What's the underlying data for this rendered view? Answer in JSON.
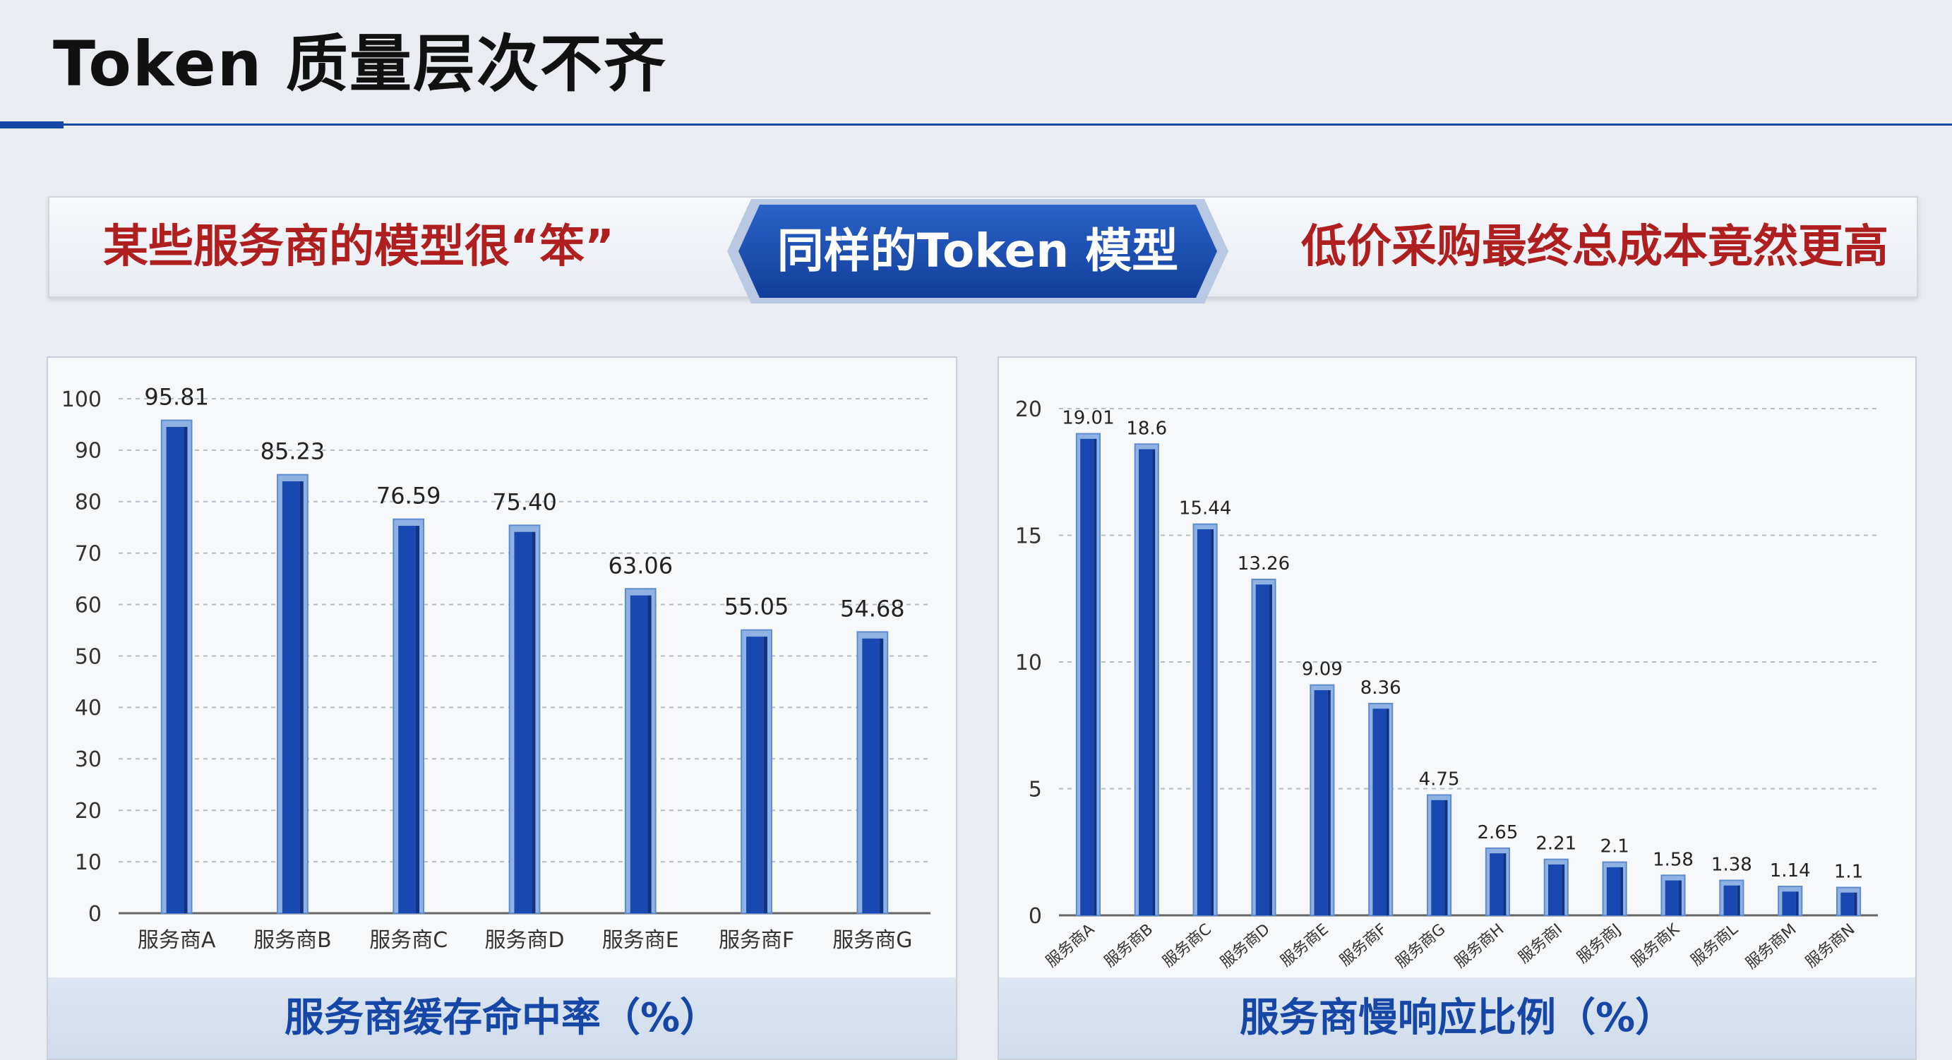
{
  "slide": {
    "title": "Token 质量层次不齐"
  },
  "banner": {
    "left_text": "某些服务商的模型很“笨”",
    "center_text": "同样的Token 模型",
    "right_text": "低价采购最终总成本竟然更高"
  },
  "colors": {
    "title": "#111111",
    "banner_red": "#b01f1f",
    "badge_blue": "#1747a6",
    "bar_blue": "#1848b0",
    "bar_edge": "#7fa6dc"
  },
  "chart_data": [
    {
      "type": "bar",
      "title": "服务商缓存命中率（%）",
      "categories": [
        "服务商A",
        "服务商B",
        "服务商C",
        "服务商D",
        "服务商E",
        "服务商F",
        "服务商G"
      ],
      "values": [
        95.81,
        85.23,
        76.59,
        75.4,
        63.06,
        55.05,
        54.68
      ],
      "data_labels": [
        "95.81",
        "85.23",
        "76.59",
        "75.40",
        "63.06",
        "55.05",
        "54.68"
      ],
      "ylim": [
        0,
        100
      ],
      "yticks": [
        0,
        10,
        20,
        30,
        40,
        50,
        60,
        70,
        80,
        90,
        100
      ],
      "xlabel": "",
      "ylabel": "",
      "grid": "horizontal dashed"
    },
    {
      "type": "bar",
      "title": "服务商慢响应比例（%）",
      "categories": [
        "服务商A",
        "服务商B",
        "服务商C",
        "服务商D",
        "服务商E",
        "服务商F",
        "服务商G",
        "服务商H",
        "服务商I",
        "服务商J",
        "服务商K",
        "服务商L",
        "服务商M",
        "服务商N"
      ],
      "values": [
        19.01,
        18.6,
        15.44,
        13.26,
        9.09,
        8.36,
        4.75,
        2.65,
        2.21,
        2.1,
        1.58,
        1.38,
        1.14,
        1.1
      ],
      "data_labels": [
        "19.01",
        "18.6",
        "15.44",
        "13.26",
        "9.09",
        "8.36",
        "4.75",
        "2.65",
        "2.21",
        "2.1",
        "1.58",
        "1.38",
        "1.14",
        "1.1"
      ],
      "ylim": [
        0,
        20
      ],
      "yticks": [
        0,
        5,
        10,
        15,
        20
      ],
      "xlabel": "",
      "ylabel": "",
      "grid": "horizontal dashed",
      "tick_label_rotation": -40
    }
  ]
}
